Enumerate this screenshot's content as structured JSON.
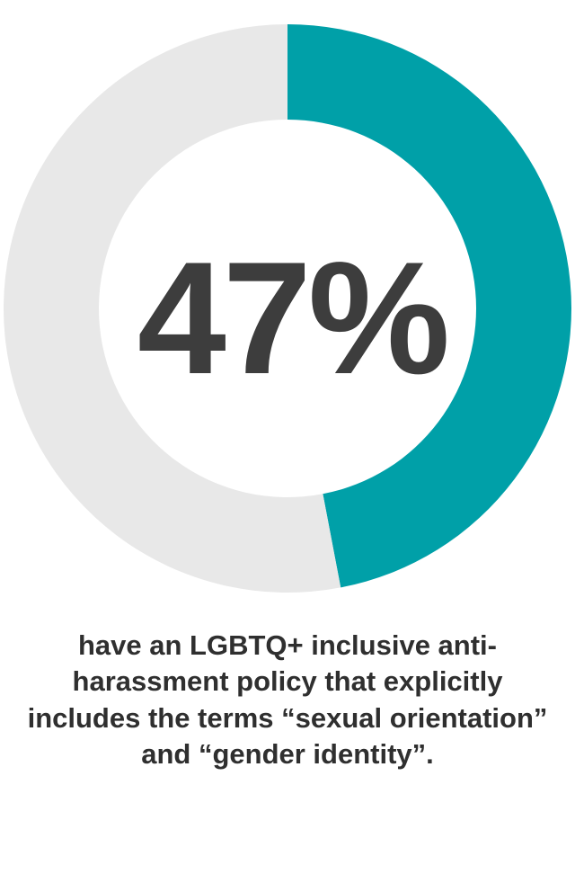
{
  "chart_data": {
    "type": "pie",
    "title": "",
    "slices": [
      {
        "label": "",
        "value": 47,
        "color": "#00a0a8"
      },
      {
        "label": "",
        "value": 53,
        "color": "#e8e8e8"
      }
    ],
    "center_label": "47%",
    "caption": "have an LGBTQ+ inclusive anti-harassment policy that explicitly includes the terms “sexual orientation” and “gender identity”."
  }
}
